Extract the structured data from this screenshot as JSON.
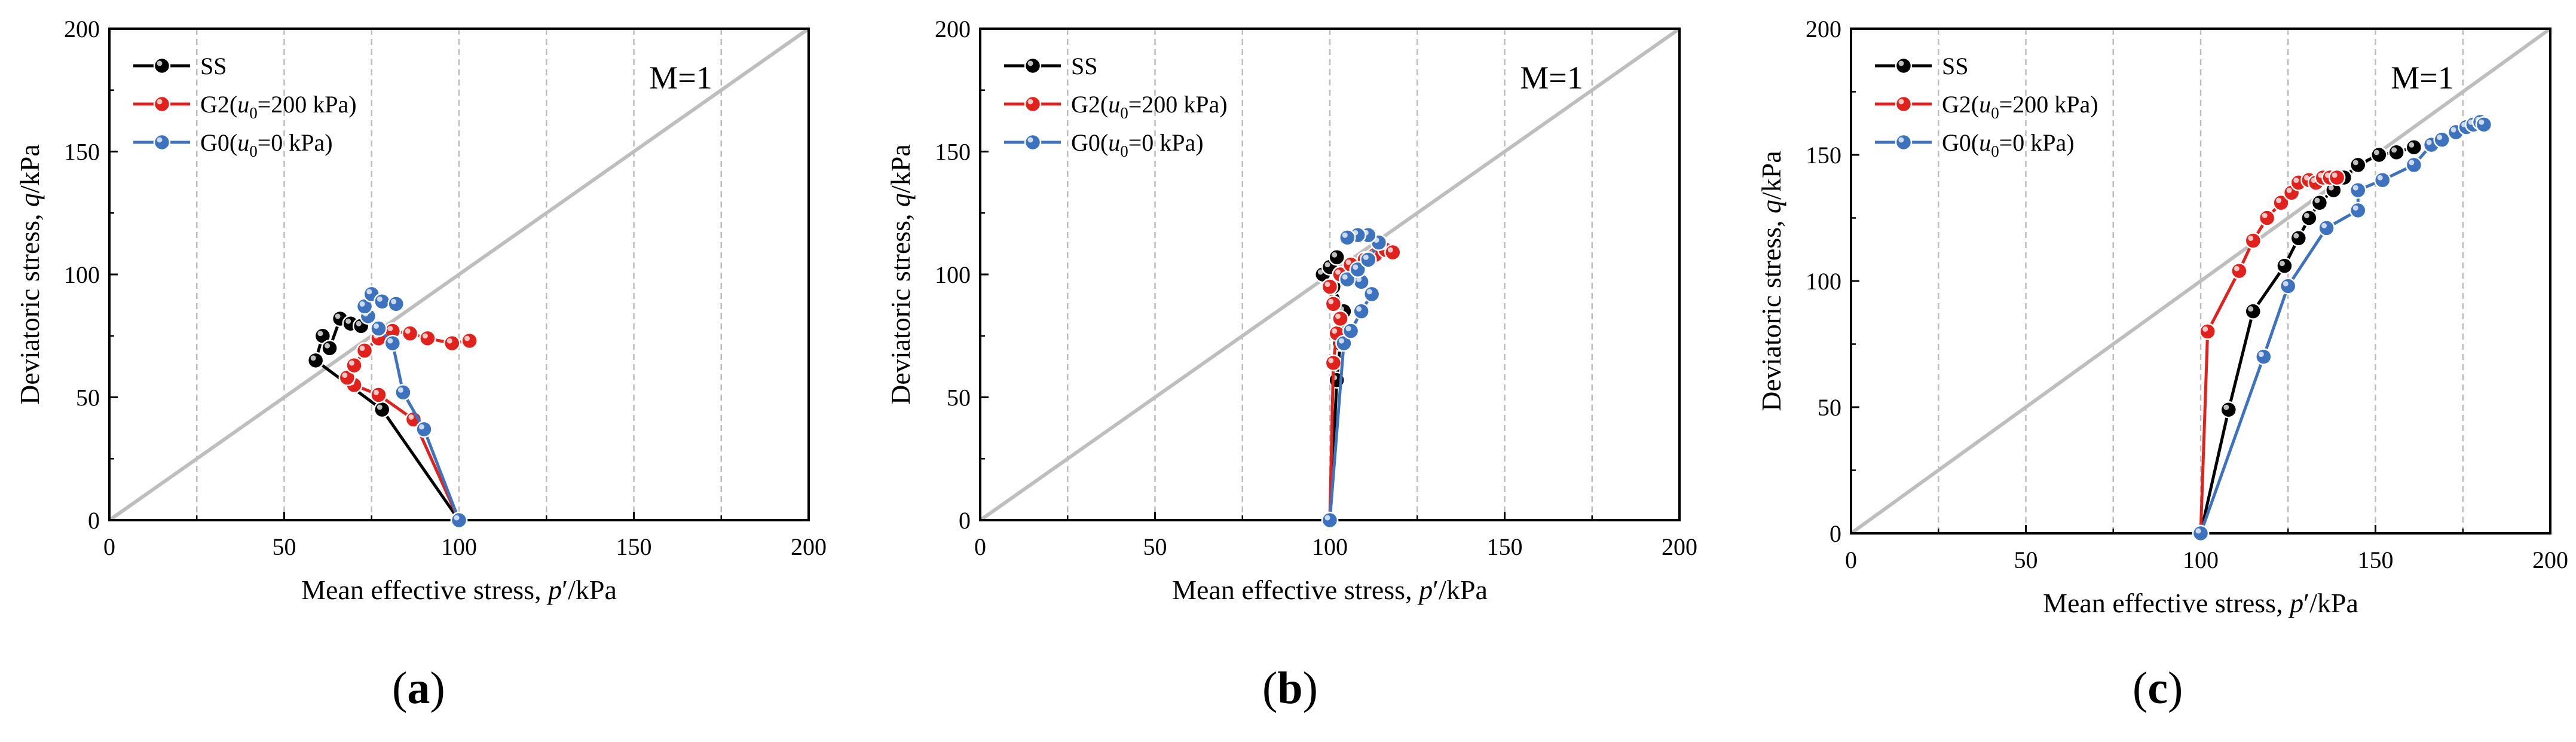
{
  "colors": {
    "ss": "#000000",
    "g2": "#e0211c",
    "g0": "#3d72bf",
    "ref": "#bebebe",
    "grid": "#bdbdbd"
  },
  "chart_data": [
    {
      "panel": "a",
      "caption": "a",
      "type": "line",
      "annotation": "M=1",
      "xlabel": "Mean effective stress, p′/kPa",
      "ylabel": "Deviatoric stress, q/kPa",
      "xlim": [
        0,
        200
      ],
      "ylim": [
        0,
        200
      ],
      "xticks": [
        0,
        50,
        100,
        150,
        200
      ],
      "yticks": [
        0,
        50,
        100,
        150,
        200
      ],
      "grid": "vertical-dashed",
      "reference_line": {
        "label": "M=1",
        "x": [
          0,
          200
        ],
        "y": [
          0,
          200
        ]
      },
      "legend": "top-left",
      "series": [
        {
          "name": "SS",
          "legend_label": "SS",
          "color_key": "ss",
          "x": [
            100,
            78,
            59,
            61,
            63,
            66,
            69,
            72
          ],
          "y": [
            0,
            45,
            65,
            75,
            70,
            82,
            80,
            79
          ]
        },
        {
          "name": "G2",
          "legend_label": "G2(u0=200 kPa)",
          "color_key": "g2",
          "x": [
            100,
            87,
            77,
            70,
            68,
            70,
            73,
            77,
            81,
            86,
            91,
            98,
            103
          ],
          "y": [
            0,
            41,
            51,
            55,
            58,
            63,
            69,
            74,
            77,
            76,
            74,
            72,
            73
          ]
        },
        {
          "name": "G0",
          "legend_label": "G0(u0=0 kPa)",
          "color_key": "g0",
          "x": [
            100,
            90,
            84,
            81,
            77,
            74,
            73,
            75,
            78,
            82
          ],
          "y": [
            0,
            37,
            52,
            72,
            78,
            83,
            87,
            92,
            89,
            88
          ]
        }
      ]
    },
    {
      "panel": "b",
      "caption": "b",
      "type": "line",
      "annotation": "M=1",
      "xlabel": "Mean effective stress, p′/kPa",
      "ylabel": "Deviatoric stress, q/kPa",
      "xlim": [
        0,
        200
      ],
      "ylim": [
        0,
        200
      ],
      "xticks": [
        0,
        50,
        100,
        150,
        200
      ],
      "yticks": [
        0,
        50,
        100,
        150,
        200
      ],
      "grid": "vertical-dashed",
      "reference_line": {
        "label": "M=1",
        "x": [
          0,
          200
        ],
        "y": [
          0,
          200
        ]
      },
      "legend": "top-left",
      "series": [
        {
          "name": "SS",
          "legend_label": "SS",
          "color_key": "ss",
          "x": [
            100,
            102,
            103,
            104,
            101,
            98,
            100,
            102
          ],
          "y": [
            0,
            57,
            72,
            85,
            95,
            100,
            103,
            107
          ]
        },
        {
          "name": "G2",
          "legend_label": "G2(u0=200 kPa)",
          "color_key": "g2",
          "x": [
            100,
            101,
            102,
            103,
            101,
            100,
            103,
            106,
            110,
            113,
            116,
            118
          ],
          "y": [
            0,
            64,
            76,
            82,
            88,
            95,
            100,
            104,
            106,
            108,
            110,
            109
          ]
        },
        {
          "name": "G0",
          "legend_label": "G0(u0=0 kPa)",
          "color_key": "g0",
          "x": [
            100,
            104,
            106,
            109,
            112,
            109,
            105,
            108,
            111,
            114,
            111,
            108,
            105
          ],
          "y": [
            0,
            72,
            77,
            85,
            92,
            97,
            98,
            102,
            106,
            113,
            116,
            116,
            115
          ]
        }
      ]
    },
    {
      "panel": "c",
      "caption": "c",
      "type": "line",
      "annotation": "M=1",
      "xlabel": "Mean effective stress, p′/kPa",
      "ylabel": "Deviatoric stress, q/kPa",
      "xlim": [
        0,
        200
      ],
      "ylim": [
        0,
        200
      ],
      "xticks": [
        0,
        50,
        100,
        150,
        200
      ],
      "yticks": [
        0,
        50,
        100,
        150,
        200
      ],
      "grid": "vertical-dashed",
      "reference_line": {
        "label": "M=1",
        "x": [
          0,
          200
        ],
        "y": [
          0,
          200
        ]
      },
      "legend": "top-left",
      "series": [
        {
          "name": "SS",
          "legend_label": "SS",
          "color_key": "ss",
          "x": [
            100,
            108,
            115,
            124,
            128,
            131,
            134,
            138,
            141,
            145,
            151,
            156,
            161
          ],
          "y": [
            0,
            49,
            88,
            106,
            117,
            125,
            131,
            136,
            141,
            146,
            150,
            151,
            153
          ]
        },
        {
          "name": "G2",
          "legend_label": "G2(u0=200 kPa)",
          "color_key": "g2",
          "x": [
            100,
            102,
            111,
            115,
            119,
            123,
            126,
            128,
            131,
            133,
            135,
            137,
            139
          ],
          "y": [
            0,
            80,
            104,
            116,
            125,
            131,
            135,
            139,
            140,
            139,
            141,
            141,
            141
          ]
        },
        {
          "name": "G0",
          "legend_label": "G0(u0=0 kPa)",
          "color_key": "g0",
          "x": [
            100,
            118,
            125,
            136,
            145,
            145,
            152,
            161,
            166,
            169,
            173,
            176,
            178,
            180,
            181
          ],
          "y": [
            0,
            70,
            98,
            121,
            128,
            136,
            140,
            146,
            154,
            156,
            159,
            161,
            162,
            163,
            162
          ]
        }
      ]
    }
  ]
}
